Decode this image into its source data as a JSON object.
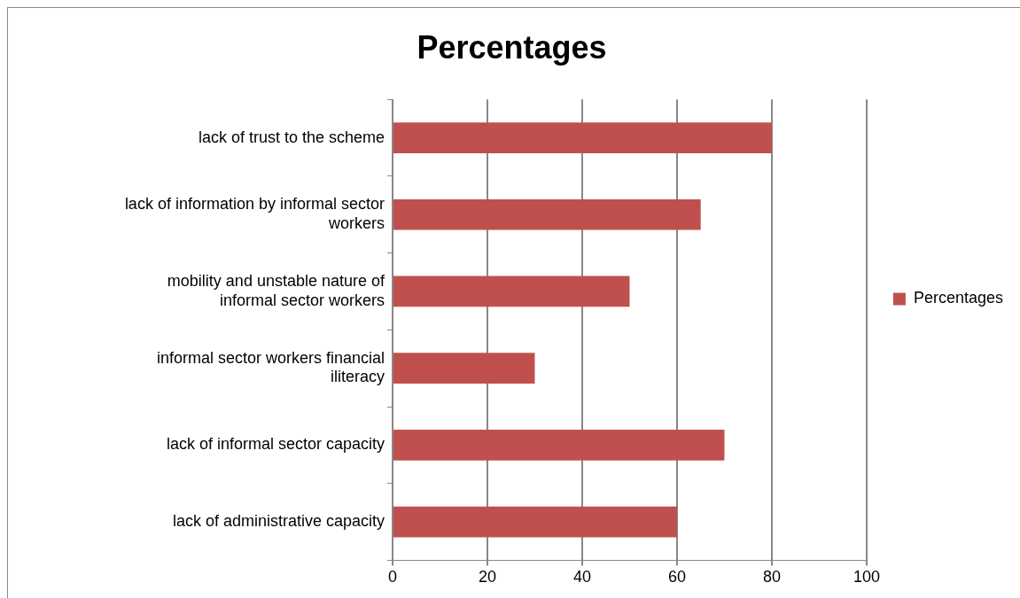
{
  "chart_data": {
    "type": "bar",
    "orientation": "horizontal",
    "title": "Percentages",
    "categories": [
      "lack of trust to the scheme",
      "lack of information by informal sector workers",
      "mobility and unstable nature of informal sector workers",
      "informal sector workers financial iliteracy",
      "lack of informal sector capacity",
      "lack of administrative capacity"
    ],
    "series": [
      {
        "name": "Percentages",
        "color": "#c0504d",
        "values": [
          80,
          65,
          50,
          30,
          70,
          60
        ]
      }
    ],
    "xlim": [
      0,
      100
    ],
    "xticks": [
      0,
      20,
      40,
      60,
      80,
      100
    ],
    "grid": "x",
    "legend": "right"
  }
}
